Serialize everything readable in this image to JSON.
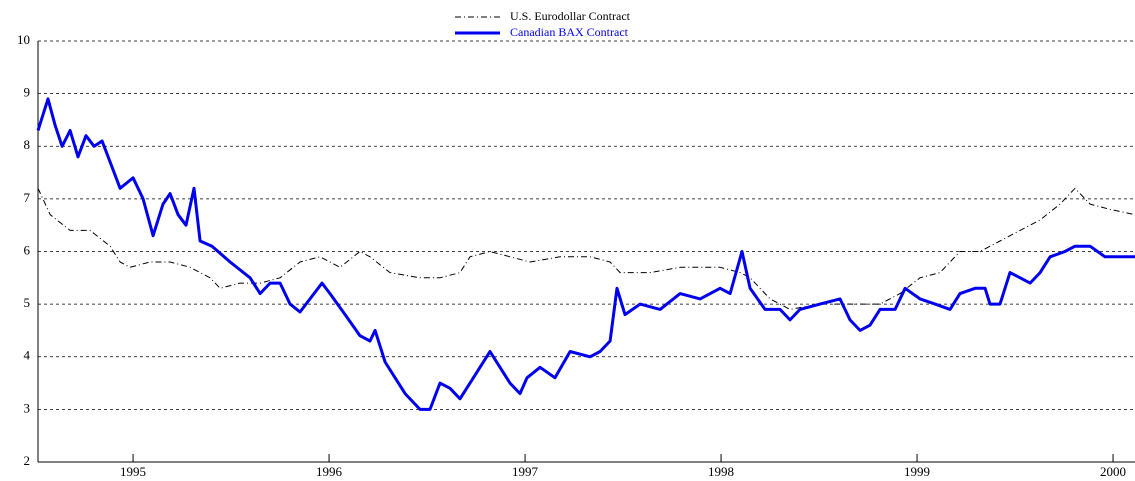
{
  "chart_data": {
    "type": "line",
    "xlim": [
      1994.515,
      2000.112
    ],
    "xticks": [
      1995,
      1996,
      1997,
      1998,
      1999,
      2000
    ],
    "ylim": [
      2,
      10
    ],
    "yticks": [
      2,
      3,
      4,
      5,
      6,
      7,
      8,
      9,
      10
    ],
    "grid": true,
    "legend": "top",
    "series": [
      {
        "name": "U.S. Eurodollar Contract",
        "color": "#000000",
        "style": "dashdot",
        "linewidth": 1,
        "x": [
          1994.515,
          1994.577,
          1994.679,
          1994.781,
          1994.883,
          1994.934,
          1994.985,
          1995.087,
          1995.189,
          1995.291,
          1995.393,
          1995.444,
          1995.546,
          1995.648,
          1995.75,
          1995.852,
          1995.954,
          1996.056,
          1996.158,
          1996.209,
          1996.311,
          1996.464,
          1996.566,
          1996.668,
          1996.719,
          1996.821,
          1996.923,
          1997.026,
          1997.179,
          1997.332,
          1997.434,
          1997.485,
          1997.638,
          1997.791,
          1997.995,
          1998.097,
          1998.148,
          1998.25,
          1998.352,
          1998.505,
          1998.658,
          1998.811,
          1998.913,
          1999.015,
          1999.117,
          1999.219,
          1999.321,
          1999.423,
          1999.526,
          1999.628,
          1999.73,
          1999.806,
          1999.883,
          1999.985,
          2000.112
        ],
        "values": [
          7.2,
          6.7,
          6.4,
          6.4,
          6.1,
          5.8,
          5.7,
          5.8,
          5.8,
          5.7,
          5.5,
          5.3,
          5.4,
          5.4,
          5.5,
          5.8,
          5.9,
          5.7,
          6.0,
          5.9,
          5.6,
          5.5,
          5.5,
          5.6,
          5.9,
          6.0,
          5.9,
          5.8,
          5.9,
          5.9,
          5.8,
          5.6,
          5.6,
          5.7,
          5.7,
          5.6,
          5.5,
          5.1,
          4.9,
          5.0,
          5.0,
          5.0,
          5.2,
          5.5,
          5.6,
          6.0,
          6.0,
          6.2,
          6.4,
          6.6,
          6.9,
          7.2,
          6.9,
          6.8,
          6.7
        ]
      },
      {
        "name": "Canadian BAX Contract",
        "color": "#0000ee",
        "style": "solid",
        "linewidth": 3,
        "x": [
          1994.515,
          1994.566,
          1994.602,
          1994.638,
          1994.679,
          1994.719,
          1994.76,
          1994.801,
          1994.842,
          1994.883,
          1994.934,
          1995.0,
          1995.051,
          1995.102,
          1995.153,
          1995.189,
          1995.23,
          1995.27,
          1995.311,
          1995.342,
          1995.403,
          1995.495,
          1995.597,
          1995.648,
          1995.699,
          1995.75,
          1995.801,
          1995.852,
          1995.964,
          1996.005,
          1996.082,
          1996.158,
          1996.209,
          1996.235,
          1996.286,
          1996.337,
          1996.388,
          1996.464,
          1996.515,
          1996.566,
          1996.617,
          1996.668,
          1996.719,
          1996.77,
          1996.821,
          1996.872,
          1996.923,
          1996.974,
          1997.01,
          1997.077,
          1997.153,
          1997.23,
          1997.332,
          1997.383,
          1997.434,
          1997.469,
          1997.51,
          1997.587,
          1997.689,
          1997.791,
          1997.893,
          1997.995,
          1998.046,
          1998.107,
          1998.148,
          1998.224,
          1998.301,
          1998.352,
          1998.403,
          1998.505,
          1998.607,
          1998.658,
          1998.709,
          1998.76,
          1998.811,
          1998.888,
          1998.939,
          1999.015,
          1999.092,
          1999.168,
          1999.219,
          1999.296,
          1999.347,
          1999.372,
          1999.423,
          1999.474,
          1999.526,
          1999.577,
          1999.628,
          1999.679,
          1999.755,
          1999.806,
          1999.883,
          1999.959,
          2000.036,
          2000.112
        ],
        "values": [
          8.3,
          8.9,
          8.4,
          8.0,
          8.3,
          7.8,
          8.2,
          8.0,
          8.1,
          7.7,
          7.2,
          7.4,
          7.0,
          6.3,
          6.9,
          7.1,
          6.7,
          6.5,
          7.2,
          6.2,
          6.1,
          5.8,
          5.5,
          5.2,
          5.4,
          5.4,
          5.0,
          4.85,
          5.4,
          5.2,
          4.8,
          4.4,
          4.3,
          4.5,
          3.9,
          3.6,
          3.3,
          3.0,
          3.0,
          3.5,
          3.4,
          3.2,
          3.5,
          3.8,
          4.1,
          3.8,
          3.5,
          3.3,
          3.6,
          3.8,
          3.6,
          4.1,
          4.0,
          4.1,
          4.3,
          5.3,
          4.8,
          5.0,
          4.9,
          5.2,
          5.1,
          5.3,
          5.2,
          6.0,
          5.3,
          4.9,
          4.9,
          4.7,
          4.9,
          5.0,
          5.1,
          4.7,
          4.5,
          4.6,
          4.9,
          4.9,
          5.3,
          5.1,
          5.0,
          4.9,
          5.2,
          5.3,
          5.3,
          5.0,
          5.0,
          5.6,
          5.5,
          5.4,
          5.6,
          5.9,
          6.0,
          6.1,
          6.1,
          5.9,
          5.9,
          5.9
        ]
      }
    ]
  }
}
